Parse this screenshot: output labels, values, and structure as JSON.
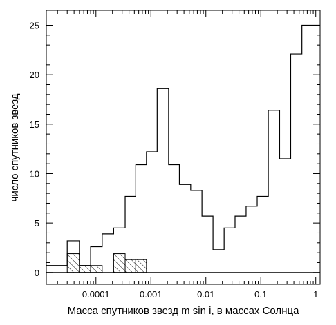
{
  "chart_data": {
    "type": "bar",
    "xlabel": "Масса спутников звезд m sin i, в массах Солнца",
    "ylabel": "число спутников звезд",
    "xscale": "log",
    "xlim": [
      1.25e-05,
      1.2
    ],
    "ylim": [
      -1.2,
      26.5
    ],
    "x_ticks": [
      {
        "value": 0.0001,
        "label": "0.0001"
      },
      {
        "value": 0.001,
        "label": "0.001"
      },
      {
        "value": 0.01,
        "label": "0.01"
      },
      {
        "value": 0.1,
        "label": "0.1"
      },
      {
        "value": 1,
        "label": "1"
      }
    ],
    "y_ticks": [
      {
        "value": 0,
        "label": "0"
      },
      {
        "value": 5,
        "label": "5"
      },
      {
        "value": 10,
        "label": "10"
      },
      {
        "value": 15,
        "label": "15"
      },
      {
        "value": 20,
        "label": "20"
      },
      {
        "value": 25,
        "label": "25"
      }
    ],
    "bin_edges": [
      1.25e-05,
      3e-05,
      5e-05,
      8e-05,
      0.00013,
      0.00021,
      0.00034,
      0.00053,
      0.00083,
      0.0013,
      0.0021,
      0.0033,
      0.0053,
      0.0085,
      0.0135,
      0.0215,
      0.034,
      0.054,
      0.086,
      0.137,
      0.22,
      0.35,
      0.56,
      0.9,
      1.2
    ],
    "series": [
      {
        "style": "outline",
        "values": [
          0.7,
          3.2,
          0.7,
          2.6,
          3.9,
          4.5,
          7.7,
          10.9,
          12.2,
          18.6,
          10.9,
          8.9,
          8.3,
          5.7,
          2.3,
          4.5,
          5.7,
          6.7,
          7.7,
          16.4,
          11.5,
          22.1,
          25.0,
          25.0
        ]
      },
      {
        "style": "hatched",
        "values": [
          0,
          1.9,
          0.7,
          0.7,
          0,
          1.9,
          1.3,
          1.3,
          0,
          0,
          0,
          0,
          0,
          0,
          0,
          0,
          0,
          0,
          0,
          0,
          0,
          0,
          0,
          0
        ]
      }
    ],
    "grid": false,
    "legend": "none"
  }
}
